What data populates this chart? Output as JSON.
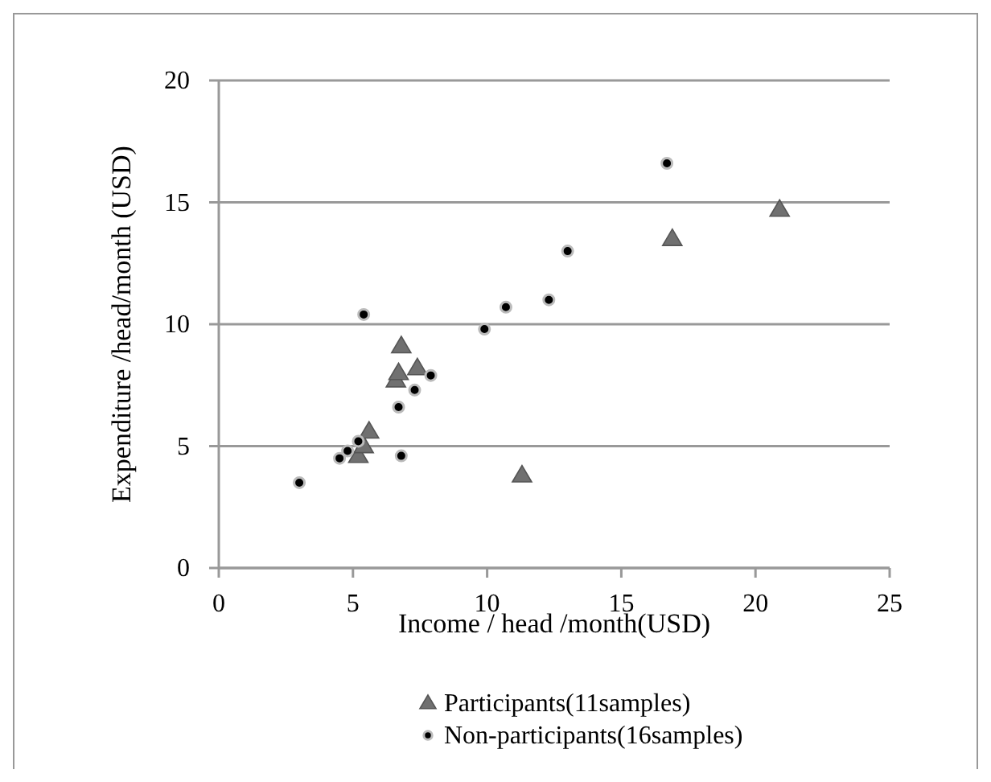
{
  "chart_data": {
    "type": "scatter",
    "xlabel": "Income / head /month(USD)",
    "ylabel": "Expenditure /head/month  (USD)",
    "xlim": [
      0,
      25
    ],
    "xticks": [
      0,
      5,
      10,
      15,
      20,
      25
    ],
    "ylim": [
      0,
      20
    ],
    "yticks": [
      0,
      5,
      10,
      15,
      20
    ],
    "grid": "y",
    "legend": "bottom",
    "series": [
      {
        "name": "Participants(11samples)",
        "color": "#707070",
        "marker": "triangle",
        "x": [
          5.2,
          5.4,
          5.6,
          6.6,
          6.7,
          6.8,
          7.4,
          11.3,
          16.9,
          20.9
        ],
        "values": [
          4.6,
          5.0,
          5.6,
          7.7,
          8.0,
          9.1,
          8.2,
          3.8,
          13.5,
          14.7
        ]
      },
      {
        "name": "Non-participants(16samples)",
        "color": "#000000",
        "marker": "circle",
        "x": [
          3.0,
          4.5,
          4.8,
          5.2,
          5.4,
          6.7,
          6.8,
          7.3,
          7.9,
          9.9,
          10.7,
          12.3,
          13.0,
          16.7
        ],
        "values": [
          3.5,
          4.5,
          4.8,
          5.2,
          10.4,
          6.6,
          4.6,
          7.3,
          7.9,
          9.8,
          10.7,
          11.0,
          13.0,
          16.6
        ]
      }
    ]
  }
}
